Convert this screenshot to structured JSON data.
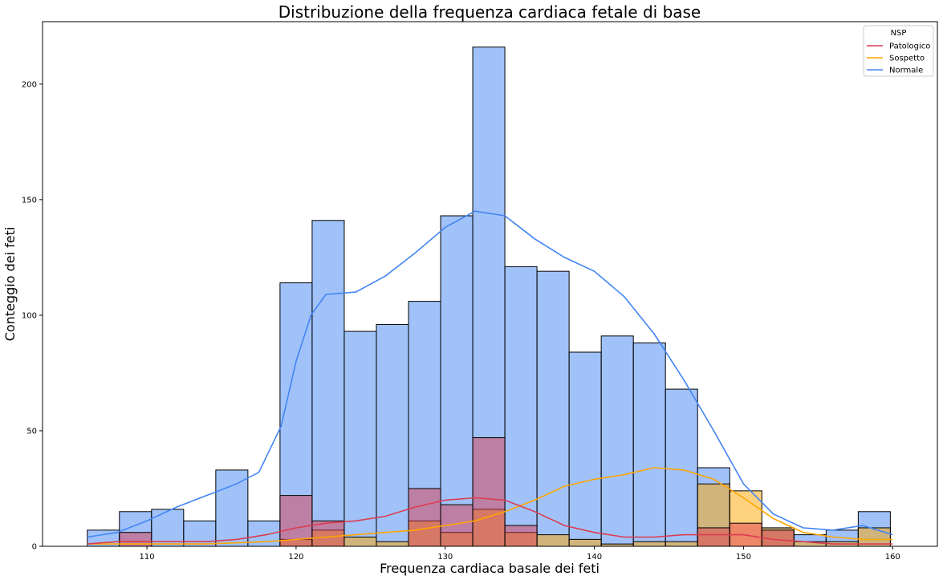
{
  "chart_data": {
    "type": "histogram",
    "title": "Distribuzione della frequenza cardiaca fetale di base",
    "xlabel": "Frequenza cardiaca basale dei feti",
    "ylabel": "Conteggio dei feti",
    "xlim": [
      103,
      163
    ],
    "ylim": [
      0,
      227
    ],
    "xticks": [
      110,
      120,
      130,
      140,
      150,
      160
    ],
    "yticks": [
      0,
      50,
      100,
      150,
      200
    ],
    "bins": {
      "start": 106,
      "width": 2.1538,
      "count": 25
    },
    "legend": {
      "title": "NSP",
      "position": "top-right"
    },
    "series": [
      {
        "name": "Normale",
        "color": "#4285f4",
        "counts": [
          7,
          15,
          16,
          11,
          33,
          11,
          114,
          141,
          93,
          96,
          106,
          143,
          216,
          121,
          119,
          84,
          91,
          88,
          68,
          34,
          0,
          8,
          5,
          7,
          15
        ],
        "kde": [
          [
            106,
            4
          ],
          [
            108,
            6
          ],
          [
            110,
            11
          ],
          [
            112,
            17
          ],
          [
            114,
            22
          ],
          [
            116,
            27
          ],
          [
            117.5,
            32
          ],
          [
            119,
            52
          ],
          [
            120,
            80
          ],
          [
            121,
            100
          ],
          [
            122,
            109
          ],
          [
            124,
            110
          ],
          [
            126,
            117
          ],
          [
            128,
            127
          ],
          [
            130,
            138
          ],
          [
            132,
            145
          ],
          [
            134,
            143
          ],
          [
            136,
            133
          ],
          [
            138,
            125
          ],
          [
            140,
            119
          ],
          [
            142,
            108
          ],
          [
            144,
            92
          ],
          [
            146,
            72
          ],
          [
            148,
            50
          ],
          [
            150,
            27
          ],
          [
            152,
            14
          ],
          [
            154,
            8
          ],
          [
            156,
            7
          ],
          [
            158,
            9
          ],
          [
            160,
            5
          ]
        ]
      },
      {
        "name": "Sospetto",
        "color": "#ffa500",
        "counts": [
          0,
          0,
          0,
          0,
          0,
          0,
          3,
          7,
          4,
          2,
          11,
          6,
          16,
          6,
          5,
          3,
          1,
          2,
          2,
          27,
          24,
          8,
          2,
          2,
          8
        ],
        "kde": [
          [
            106,
            1
          ],
          [
            110,
            1
          ],
          [
            114,
            1
          ],
          [
            118,
            2
          ],
          [
            120,
            3
          ],
          [
            122,
            4
          ],
          [
            124,
            5
          ],
          [
            126,
            6
          ],
          [
            128,
            7
          ],
          [
            130,
            9
          ],
          [
            132,
            11
          ],
          [
            134,
            15
          ],
          [
            136,
            20
          ],
          [
            138,
            26
          ],
          [
            140,
            29
          ],
          [
            142,
            31
          ],
          [
            144,
            34
          ],
          [
            146,
            33
          ],
          [
            148,
            29
          ],
          [
            150,
            21
          ],
          [
            152,
            12
          ],
          [
            154,
            6
          ],
          [
            156,
            4
          ],
          [
            158,
            3
          ],
          [
            160,
            3
          ]
        ]
      },
      {
        "name": "Patologico",
        "color": "#dc3c50",
        "counts": [
          0,
          6,
          0,
          0,
          0,
          0,
          22,
          11,
          0,
          0,
          25,
          18,
          47,
          9,
          0,
          0,
          0,
          0,
          0,
          8,
          10,
          7,
          0,
          0,
          0
        ],
        "kde": [
          [
            106,
            1
          ],
          [
            108,
            2
          ],
          [
            110,
            2
          ],
          [
            112,
            2
          ],
          [
            114,
            2
          ],
          [
            116,
            3
          ],
          [
            118,
            5
          ],
          [
            120,
            8
          ],
          [
            122,
            10
          ],
          [
            124,
            11
          ],
          [
            126,
            13
          ],
          [
            128,
            17
          ],
          [
            130,
            20
          ],
          [
            132,
            21
          ],
          [
            134,
            20
          ],
          [
            136,
            15
          ],
          [
            138,
            9
          ],
          [
            140,
            6
          ],
          [
            142,
            4
          ],
          [
            144,
            4
          ],
          [
            146,
            5
          ],
          [
            148,
            5
          ],
          [
            150,
            5
          ],
          [
            152,
            3
          ],
          [
            154,
            2
          ],
          [
            156,
            1
          ],
          [
            158,
            1
          ],
          [
            160,
            1
          ]
        ]
      }
    ]
  }
}
